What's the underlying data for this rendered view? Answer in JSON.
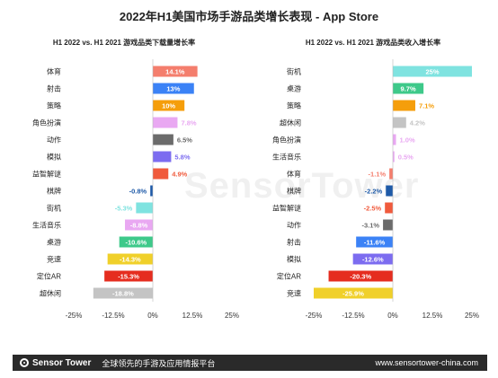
{
  "page_title": "2022年H1美国市场手游品类增长表现 - App Store",
  "watermark": "SensorTower",
  "footer": {
    "brand": "Sensor Tower",
    "slogan": "全球领先的手游及应用情报平台",
    "url": "www.sensortower-china.com"
  },
  "chart_data": [
    {
      "type": "bar",
      "orientation": "horizontal",
      "title": "H1 2022 vs. H1 2021 游戏品类下载量增长率",
      "categories": [
        "体育",
        "射击",
        "策略",
        "角色扮演",
        "动作",
        "模拟",
        "益智解谜",
        "棋牌",
        "街机",
        "生活音乐",
        "桌游",
        "竞速",
        "定位AR",
        "超休闲"
      ],
      "values": [
        14.1,
        13,
        10,
        7.8,
        6.5,
        5.8,
        4.9,
        -0.8,
        -5.3,
        -8.8,
        -10.6,
        -14.3,
        -15.3,
        -18.8
      ],
      "labels": [
        "14.1%",
        "13%",
        "10%",
        "7.8%",
        "6.5%",
        "5.8%",
        "4.9%",
        "-0.8%",
        "-5.3%",
        "-8.8%",
        "-10.6%",
        "-14.3%",
        "-15.3%",
        "-18.8%"
      ],
      "colors": [
        "#f47e6d",
        "#3b82f6",
        "#f59e0b",
        "#e9a8f2",
        "#6b6b6b",
        "#7c6cf0",
        "#f05a3c",
        "#1e5aa8",
        "#7fe3e0",
        "#e9a8f2",
        "#3ec98a",
        "#f0d02a",
        "#e52d1f",
        "#c4c4c4"
      ],
      "xlim": [
        -25,
        25
      ],
      "ticks": [
        "-25%",
        "-12.5%",
        "0%",
        "12.5%",
        "25%"
      ]
    },
    {
      "type": "bar",
      "orientation": "horizontal",
      "title": "H1 2022 vs. H1 2021 游戏品类收入增长率",
      "categories": [
        "街机",
        "桌游",
        "策略",
        "超休闲",
        "角色扮演",
        "生活音乐",
        "体育",
        "棋牌",
        "益智解谜",
        "动作",
        "射击",
        "模拟",
        "定位AR",
        "竞速"
      ],
      "values": [
        25,
        9.7,
        7.1,
        4.2,
        1.0,
        0.5,
        -1.1,
        -2.2,
        -2.5,
        -3.1,
        -11.6,
        -12.6,
        -20.3,
        -25.9
      ],
      "labels": [
        "25%",
        "9.7%",
        "7.1%",
        "4.2%",
        "1.0%",
        "0.5%",
        "-1.1%",
        "-2.2%",
        "-2.5%",
        "-3.1%",
        "-11.6%",
        "-12.6%",
        "-20.3%",
        "-25.9%"
      ],
      "colors": [
        "#7fe3e0",
        "#3ec98a",
        "#f59e0b",
        "#c4c4c4",
        "#e9a8f2",
        "#e9a8f2",
        "#f47e6d",
        "#1e5aa8",
        "#f05a3c",
        "#6b6b6b",
        "#3b82f6",
        "#7c6cf0",
        "#e52d1f",
        "#f0d02a"
      ],
      "xlim": [
        -25,
        25
      ],
      "ticks": [
        "-25%",
        "-12.5%",
        "0%",
        "12.5%",
        "25%"
      ]
    }
  ]
}
